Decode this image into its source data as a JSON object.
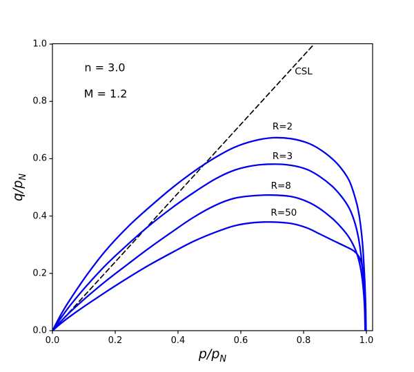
{
  "figure": {
    "background": "#ffffff",
    "frame_color": "#000000"
  },
  "annotations": {
    "n_label": "n = 3.0",
    "m_label": "M = 1.2"
  },
  "axes": {
    "xlabel_main": "p/p",
    "xlabel_sub": "N",
    "ylabel_main": "q/p",
    "ylabel_sub": "N"
  },
  "chart_data": {
    "type": "line",
    "title": "",
    "xlabel": "p/p_N",
    "ylabel": "q/p_N",
    "xlim": [
      0,
      1.02
    ],
    "ylim": [
      0,
      1.0
    ],
    "grid": false,
    "x_ticks": [
      {
        "v": 0.0,
        "label": "0.0"
      },
      {
        "v": 0.2,
        "label": "0.2"
      },
      {
        "v": 0.4,
        "label": "0.4"
      },
      {
        "v": 0.6,
        "label": "0.6"
      },
      {
        "v": 0.8,
        "label": "0.8"
      },
      {
        "v": 1.0,
        "label": "1.0"
      }
    ],
    "y_ticks": [
      {
        "v": 0.0,
        "label": "0.0"
      },
      {
        "v": 0.2,
        "label": "0.2"
      },
      {
        "v": 0.4,
        "label": "0.4"
      },
      {
        "v": 0.6,
        "label": "0.6"
      },
      {
        "v": 0.8,
        "label": "0.8"
      },
      {
        "v": 1.0,
        "label": "1.0"
      }
    ],
    "text_annotations": [
      {
        "name": "n-value",
        "key": "n_label",
        "text": "n = 3.0",
        "pos": [
          0.168,
          0.918
        ]
      },
      {
        "name": "m-value",
        "key": "m_label",
        "text": "M = 1.2",
        "pos": [
          0.168,
          0.827
        ]
      }
    ],
    "series": [
      {
        "name": "CSL",
        "label": "CSL",
        "style": "dashed",
        "color": "#000000",
        "width": 1.7,
        "label_pos": [
          0.8,
          0.905
        ],
        "comment_slope": 1.2,
        "points": [
          [
            0,
            0
          ],
          [
            0.8333,
            1.0
          ]
        ]
      },
      {
        "name": "R=2",
        "label": "R=2",
        "style": "solid",
        "color": "#0000ee",
        "width": 2.3,
        "label_pos": [
          0.733,
          0.712
        ],
        "peak": [
          0.7,
          0.673
        ],
        "points": [
          [
            0,
            0
          ],
          [
            0.03,
            0.062
          ],
          [
            0.06,
            0.115
          ],
          [
            0.11,
            0.195
          ],
          [
            0.17,
            0.28
          ],
          [
            0.24,
            0.362
          ],
          [
            0.31,
            0.432
          ],
          [
            0.38,
            0.497
          ],
          [
            0.45,
            0.555
          ],
          [
            0.52,
            0.605
          ],
          [
            0.58,
            0.64
          ],
          [
            0.64,
            0.662
          ],
          [
            0.7,
            0.673
          ],
          [
            0.76,
            0.67
          ],
          [
            0.81,
            0.656
          ],
          [
            0.85,
            0.634
          ],
          [
            0.89,
            0.601
          ],
          [
            0.92,
            0.566
          ],
          [
            0.945,
            0.524
          ],
          [
            0.962,
            0.472
          ],
          [
            0.975,
            0.415
          ],
          [
            0.984,
            0.345
          ],
          [
            0.99,
            0.268
          ],
          [
            0.9945,
            0.18
          ],
          [
            0.9975,
            0.09
          ],
          [
            0.999,
            0
          ]
        ]
      },
      {
        "name": "R=3",
        "label": "R=3",
        "style": "solid",
        "color": "#0000ee",
        "width": 2.3,
        "label_pos": [
          0.733,
          0.608
        ],
        "peak": [
          0.7,
          0.581
        ],
        "points": [
          [
            0,
            0
          ],
          [
            0.03,
            0.049
          ],
          [
            0.06,
            0.093
          ],
          [
            0.11,
            0.158
          ],
          [
            0.17,
            0.229
          ],
          [
            0.24,
            0.301
          ],
          [
            0.31,
            0.368
          ],
          [
            0.38,
            0.428
          ],
          [
            0.45,
            0.482
          ],
          [
            0.52,
            0.53
          ],
          [
            0.58,
            0.56
          ],
          [
            0.64,
            0.576
          ],
          [
            0.7,
            0.581
          ],
          [
            0.76,
            0.577
          ],
          [
            0.81,
            0.563
          ],
          [
            0.85,
            0.539
          ],
          [
            0.89,
            0.505
          ],
          [
            0.92,
            0.469
          ],
          [
            0.945,
            0.428
          ],
          [
            0.962,
            0.381
          ],
          [
            0.974,
            0.328
          ],
          [
            0.982,
            0.272
          ],
          [
            0.988,
            0.21
          ],
          [
            0.9925,
            0.145
          ],
          [
            0.996,
            0.07
          ],
          [
            0.9975,
            0
          ]
        ]
      },
      {
        "name": "R=8",
        "label": "R=8",
        "style": "solid",
        "color": "#0000ee",
        "width": 2.3,
        "label_pos": [
          0.728,
          0.504
        ],
        "peak": [
          0.7,
          0.473
        ],
        "points": [
          [
            0,
            0
          ],
          [
            0.03,
            0.036
          ],
          [
            0.06,
            0.069
          ],
          [
            0.11,
            0.118
          ],
          [
            0.17,
            0.173
          ],
          [
            0.24,
            0.232
          ],
          [
            0.31,
            0.29
          ],
          [
            0.38,
            0.344
          ],
          [
            0.45,
            0.396
          ],
          [
            0.52,
            0.438
          ],
          [
            0.58,
            0.462
          ],
          [
            0.64,
            0.471
          ],
          [
            0.7,
            0.473
          ],
          [
            0.76,
            0.468
          ],
          [
            0.81,
            0.451
          ],
          [
            0.85,
            0.427
          ],
          [
            0.89,
            0.393
          ],
          [
            0.915,
            0.366
          ],
          [
            0.94,
            0.333
          ],
          [
            0.955,
            0.306
          ],
          [
            0.966,
            0.28
          ],
          [
            0.975,
            0.25
          ],
          [
            0.982,
            0.215
          ],
          [
            0.988,
            0.17
          ],
          [
            0.9925,
            0.115
          ],
          [
            0.995,
            0.06
          ],
          [
            0.996,
            0
          ]
        ]
      },
      {
        "name": "R=50",
        "label": "R=50",
        "style": "solid",
        "color": "#0000ee",
        "width": 2.3,
        "label_pos": [
          0.737,
          0.411
        ],
        "peak": [
          0.7,
          0.379
        ],
        "points": [
          [
            0,
            0
          ],
          [
            0.03,
            0.028
          ],
          [
            0.06,
            0.053
          ],
          [
            0.11,
            0.091
          ],
          [
            0.17,
            0.135
          ],
          [
            0.24,
            0.184
          ],
          [
            0.31,
            0.23
          ],
          [
            0.38,
            0.272
          ],
          [
            0.45,
            0.312
          ],
          [
            0.52,
            0.344
          ],
          [
            0.58,
            0.366
          ],
          [
            0.64,
            0.377
          ],
          [
            0.7,
            0.379
          ],
          [
            0.76,
            0.374
          ],
          [
            0.81,
            0.359
          ],
          [
            0.85,
            0.338
          ],
          [
            0.88,
            0.322
          ],
          [
            0.91,
            0.306
          ],
          [
            0.935,
            0.293
          ],
          [
            0.955,
            0.282
          ],
          [
            0.97,
            0.268
          ],
          [
            0.98,
            0.25
          ],
          [
            0.987,
            0.223
          ],
          [
            0.991,
            0.188
          ],
          [
            0.9935,
            0.148
          ],
          [
            0.995,
            0.09
          ],
          [
            0.996,
            0
          ]
        ]
      }
    ]
  }
}
